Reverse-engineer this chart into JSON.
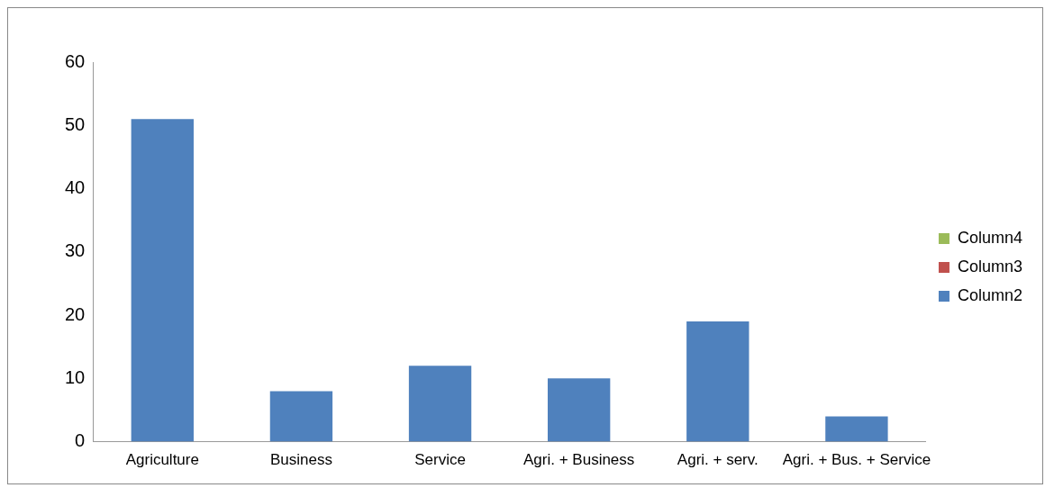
{
  "chart_data": {
    "type": "bar",
    "categories": [
      "Agriculture",
      "Business",
      "Service",
      "Agri. + Business",
      "Agri. + serv.",
      "Agri. + Bus. + Service"
    ],
    "series": [
      {
        "name": "Column2",
        "color": "#4f81bd",
        "values": [
          51,
          8,
          12,
          10,
          19,
          4
        ]
      },
      {
        "name": "Column3",
        "color": "#c0504d",
        "values": [
          null,
          null,
          null,
          null,
          null,
          null
        ]
      },
      {
        "name": "Column4",
        "color": "#9bbb59",
        "values": [
          null,
          null,
          null,
          null,
          null,
          null
        ]
      }
    ],
    "ylim": [
      0,
      60
    ],
    "yticks": [
      0,
      10,
      20,
      30,
      40,
      50,
      60
    ],
    "grid": false,
    "legend": "right"
  }
}
